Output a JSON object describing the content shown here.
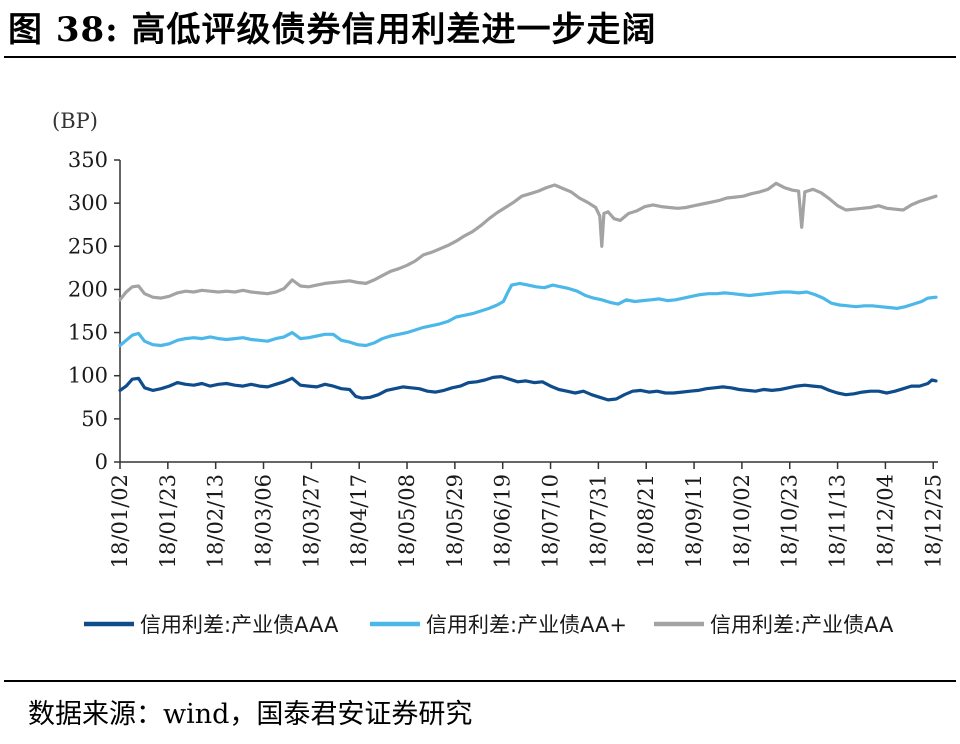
{
  "figure": {
    "title": "图 38:  高低评级债券信用利差进一步走阔",
    "source": "数据来源：wind，国泰君安证券研究"
  },
  "chart_data": {
    "type": "line",
    "unit_label": "(BP)",
    "ylim": [
      0,
      350
    ],
    "yticks": [
      0,
      50,
      100,
      150,
      200,
      250,
      300,
      350
    ],
    "x_tick_labels": [
      "18/01/02",
      "18/01/23",
      "18/02/13",
      "18/03/06",
      "18/03/27",
      "18/04/17",
      "18/05/08",
      "18/05/29",
      "18/06/19",
      "18/07/10",
      "18/07/31",
      "18/08/21",
      "18/09/11",
      "18/10/02",
      "18/10/23",
      "18/11/13",
      "18/12/04",
      "18/12/25"
    ],
    "grid": false,
    "legend_position": "bottom",
    "series": [
      {
        "name": "信用利差:产业债AAA",
        "color": "#0f4c8c",
        "points": [
          [
            0,
            83
          ],
          [
            0.3,
            88
          ],
          [
            0.6,
            96
          ],
          [
            0.9,
            97
          ],
          [
            1.2,
            86
          ],
          [
            1.6,
            83
          ],
          [
            2,
            85
          ],
          [
            2.4,
            88
          ],
          [
            2.8,
            92
          ],
          [
            3.2,
            90
          ],
          [
            3.6,
            89
          ],
          [
            4,
            91
          ],
          [
            4.4,
            88
          ],
          [
            4.8,
            90
          ],
          [
            5.2,
            91
          ],
          [
            5.6,
            89
          ],
          [
            6,
            88
          ],
          [
            6.4,
            90
          ],
          [
            6.8,
            88
          ],
          [
            7.2,
            87
          ],
          [
            7.6,
            90
          ],
          [
            8,
            93
          ],
          [
            8.4,
            97
          ],
          [
            8.8,
            89
          ],
          [
            9.2,
            88
          ],
          [
            9.6,
            87
          ],
          [
            10,
            90
          ],
          [
            10.4,
            88
          ],
          [
            10.8,
            85
          ],
          [
            11.2,
            84
          ],
          [
            11.5,
            76
          ],
          [
            11.8,
            74
          ],
          [
            12.2,
            75
          ],
          [
            12.6,
            78
          ],
          [
            13,
            83
          ],
          [
            13.4,
            85
          ],
          [
            13.8,
            87
          ],
          [
            14.2,
            86
          ],
          [
            14.6,
            85
          ],
          [
            15,
            82
          ],
          [
            15.4,
            81
          ],
          [
            15.8,
            83
          ],
          [
            16.2,
            86
          ],
          [
            16.6,
            88
          ],
          [
            17,
            92
          ],
          [
            17.4,
            93
          ],
          [
            17.8,
            95
          ],
          [
            18.2,
            98
          ],
          [
            18.6,
            99
          ],
          [
            19,
            96
          ],
          [
            19.4,
            93
          ],
          [
            19.8,
            94
          ],
          [
            20.2,
            92
          ],
          [
            20.6,
            93
          ],
          [
            21,
            88
          ],
          [
            21.4,
            84
          ],
          [
            21.8,
            82
          ],
          [
            22.2,
            80
          ],
          [
            22.6,
            82
          ],
          [
            23,
            78
          ],
          [
            23.4,
            75
          ],
          [
            23.8,
            72
          ],
          [
            24.2,
            73
          ],
          [
            24.6,
            78
          ],
          [
            25,
            82
          ],
          [
            25.4,
            83
          ],
          [
            25.8,
            81
          ],
          [
            26.2,
            82
          ],
          [
            26.6,
            80
          ],
          [
            27,
            80
          ],
          [
            27.4,
            81
          ],
          [
            27.8,
            82
          ],
          [
            28.2,
            83
          ],
          [
            28.6,
            85
          ],
          [
            29,
            86
          ],
          [
            29.4,
            87
          ],
          [
            29.8,
            86
          ],
          [
            30.2,
            84
          ],
          [
            30.6,
            83
          ],
          [
            31,
            82
          ],
          [
            31.4,
            84
          ],
          [
            31.8,
            83
          ],
          [
            32.2,
            84
          ],
          [
            32.6,
            86
          ],
          [
            33,
            88
          ],
          [
            33.4,
            89
          ],
          [
            33.8,
            88
          ],
          [
            34.2,
            87
          ],
          [
            34.6,
            83
          ],
          [
            35,
            80
          ],
          [
            35.4,
            78
          ],
          [
            35.8,
            79
          ],
          [
            36.2,
            81
          ],
          [
            36.6,
            82
          ],
          [
            37,
            82
          ],
          [
            37.4,
            80
          ],
          [
            37.8,
            82
          ],
          [
            38.2,
            85
          ],
          [
            38.6,
            88
          ],
          [
            39,
            88
          ],
          [
            39.4,
            91
          ],
          [
            39.6,
            95
          ],
          [
            39.8,
            94
          ]
        ]
      },
      {
        "name": "信用利差:产业债AA+",
        "color": "#4cb8ea",
        "points": [
          [
            0,
            135
          ],
          [
            0.3,
            141
          ],
          [
            0.6,
            147
          ],
          [
            0.9,
            149
          ],
          [
            1.2,
            140
          ],
          [
            1.6,
            136
          ],
          [
            2,
            135
          ],
          [
            2.4,
            137
          ],
          [
            2.8,
            141
          ],
          [
            3.2,
            143
          ],
          [
            3.6,
            144
          ],
          [
            4,
            143
          ],
          [
            4.4,
            145
          ],
          [
            4.8,
            143
          ],
          [
            5.2,
            142
          ],
          [
            5.6,
            143
          ],
          [
            6,
            144
          ],
          [
            6.4,
            142
          ],
          [
            6.8,
            141
          ],
          [
            7.2,
            140
          ],
          [
            7.6,
            143
          ],
          [
            8,
            145
          ],
          [
            8.4,
            150
          ],
          [
            8.8,
            143
          ],
          [
            9.2,
            144
          ],
          [
            9.6,
            146
          ],
          [
            10,
            148
          ],
          [
            10.4,
            148
          ],
          [
            10.8,
            141
          ],
          [
            11.2,
            139
          ],
          [
            11.6,
            136
          ],
          [
            12,
            135
          ],
          [
            12.4,
            138
          ],
          [
            12.8,
            143
          ],
          [
            13.2,
            146
          ],
          [
            13.6,
            148
          ],
          [
            14,
            150
          ],
          [
            14.4,
            153
          ],
          [
            14.8,
            156
          ],
          [
            15.2,
            158
          ],
          [
            15.6,
            160
          ],
          [
            16,
            163
          ],
          [
            16.4,
            168
          ],
          [
            16.8,
            170
          ],
          [
            17.2,
            172
          ],
          [
            17.6,
            175
          ],
          [
            18,
            178
          ],
          [
            18.4,
            182
          ],
          [
            18.7,
            186
          ],
          [
            18.9,
            196
          ],
          [
            19.1,
            205
          ],
          [
            19.5,
            207
          ],
          [
            19.9,
            205
          ],
          [
            20.3,
            203
          ],
          [
            20.7,
            202
          ],
          [
            21.1,
            205
          ],
          [
            21.5,
            203
          ],
          [
            21.9,
            201
          ],
          [
            22.3,
            198
          ],
          [
            22.7,
            193
          ],
          [
            23.1,
            190
          ],
          [
            23.5,
            188
          ],
          [
            23.9,
            185
          ],
          [
            24.3,
            183
          ],
          [
            24.7,
            188
          ],
          [
            25.1,
            186
          ],
          [
            25.5,
            187
          ],
          [
            25.9,
            188
          ],
          [
            26.3,
            189
          ],
          [
            26.7,
            187
          ],
          [
            27.1,
            188
          ],
          [
            27.5,
            190
          ],
          [
            27.9,
            192
          ],
          [
            28.3,
            194
          ],
          [
            28.7,
            195
          ],
          [
            29.1,
            195
          ],
          [
            29.5,
            196
          ],
          [
            29.9,
            195
          ],
          [
            30.3,
            194
          ],
          [
            30.7,
            193
          ],
          [
            31.1,
            194
          ],
          [
            31.5,
            195
          ],
          [
            31.9,
            196
          ],
          [
            32.3,
            197
          ],
          [
            32.7,
            197
          ],
          [
            33.1,
            196
          ],
          [
            33.5,
            197
          ],
          [
            33.9,
            194
          ],
          [
            34.3,
            190
          ],
          [
            34.7,
            184
          ],
          [
            35.1,
            182
          ],
          [
            35.5,
            181
          ],
          [
            35.9,
            180
          ],
          [
            36.3,
            181
          ],
          [
            36.7,
            181
          ],
          [
            37.1,
            180
          ],
          [
            37.5,
            179
          ],
          [
            37.9,
            178
          ],
          [
            38.3,
            180
          ],
          [
            38.7,
            183
          ],
          [
            39.1,
            186
          ],
          [
            39.4,
            190
          ],
          [
            39.8,
            191
          ]
        ]
      },
      {
        "name": "信用利差:产业债AA",
        "color": "#a3a3a3",
        "points": [
          [
            0,
            188
          ],
          [
            0.3,
            197
          ],
          [
            0.6,
            203
          ],
          [
            0.9,
            204
          ],
          [
            1.2,
            195
          ],
          [
            1.6,
            191
          ],
          [
            2,
            190
          ],
          [
            2.4,
            192
          ],
          [
            2.8,
            196
          ],
          [
            3.2,
            198
          ],
          [
            3.6,
            197
          ],
          [
            4,
            199
          ],
          [
            4.4,
            198
          ],
          [
            4.8,
            197
          ],
          [
            5.2,
            198
          ],
          [
            5.6,
            197
          ],
          [
            6,
            199
          ],
          [
            6.4,
            197
          ],
          [
            6.8,
            196
          ],
          [
            7.2,
            195
          ],
          [
            7.6,
            197
          ],
          [
            8,
            201
          ],
          [
            8.4,
            211
          ],
          [
            8.8,
            204
          ],
          [
            9.2,
            203
          ],
          [
            9.6,
            205
          ],
          [
            10,
            207
          ],
          [
            10.4,
            208
          ],
          [
            10.8,
            209
          ],
          [
            11.2,
            210
          ],
          [
            11.6,
            208
          ],
          [
            12,
            207
          ],
          [
            12.4,
            211
          ],
          [
            12.8,
            216
          ],
          [
            13.2,
            221
          ],
          [
            13.6,
            224
          ],
          [
            14,
            228
          ],
          [
            14.4,
            233
          ],
          [
            14.8,
            240
          ],
          [
            15.2,
            243
          ],
          [
            15.6,
            247
          ],
          [
            16,
            251
          ],
          [
            16.4,
            256
          ],
          [
            16.8,
            262
          ],
          [
            17.2,
            267
          ],
          [
            17.6,
            274
          ],
          [
            18,
            282
          ],
          [
            18.4,
            289
          ],
          [
            18.8,
            295
          ],
          [
            19.2,
            301
          ],
          [
            19.6,
            308
          ],
          [
            20,
            311
          ],
          [
            20.4,
            314
          ],
          [
            20.8,
            318
          ],
          [
            21.2,
            321
          ],
          [
            21.6,
            317
          ],
          [
            22,
            313
          ],
          [
            22.4,
            306
          ],
          [
            22.8,
            301
          ],
          [
            23.2,
            295
          ],
          [
            23.4,
            285
          ],
          [
            23.5,
            250
          ],
          [
            23.6,
            288
          ],
          [
            23.8,
            290
          ],
          [
            24.1,
            282
          ],
          [
            24.4,
            280
          ],
          [
            24.8,
            288
          ],
          [
            25.2,
            291
          ],
          [
            25.6,
            296
          ],
          [
            26,
            298
          ],
          [
            26.4,
            296
          ],
          [
            26.8,
            295
          ],
          [
            27.2,
            294
          ],
          [
            27.6,
            295
          ],
          [
            28,
            297
          ],
          [
            28.4,
            299
          ],
          [
            28.8,
            301
          ],
          [
            29.2,
            303
          ],
          [
            29.6,
            306
          ],
          [
            30,
            307
          ],
          [
            30.4,
            308
          ],
          [
            30.8,
            311
          ],
          [
            31.2,
            313
          ],
          [
            31.6,
            316
          ],
          [
            32,
            323
          ],
          [
            32.4,
            318
          ],
          [
            32.8,
            315
          ],
          [
            33.1,
            314
          ],
          [
            33.25,
            272
          ],
          [
            33.4,
            313
          ],
          [
            33.8,
            316
          ],
          [
            34.2,
            312
          ],
          [
            34.6,
            305
          ],
          [
            35,
            297
          ],
          [
            35.4,
            292
          ],
          [
            35.8,
            293
          ],
          [
            36.2,
            294
          ],
          [
            36.6,
            295
          ],
          [
            37,
            297
          ],
          [
            37.4,
            294
          ],
          [
            37.8,
            293
          ],
          [
            38.2,
            292
          ],
          [
            38.6,
            298
          ],
          [
            39,
            302
          ],
          [
            39.4,
            305
          ],
          [
            39.8,
            308
          ]
        ]
      }
    ]
  }
}
